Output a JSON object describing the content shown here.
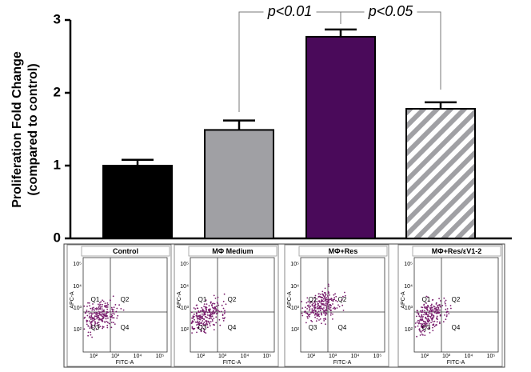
{
  "chart_data": {
    "type": "bar",
    "y_label_lines": [
      "Proliferation Fold Change",
      "(compared to control)"
    ],
    "categories": [
      "Control",
      "MΦ Medium",
      "MΦ+Res",
      "MΦ+Res/εV1-2"
    ],
    "values": [
      1.0,
      1.49,
      2.77,
      1.78
    ],
    "errors": [
      0.08,
      0.13,
      0.1,
      0.09
    ],
    "colors": [
      "#000000",
      "#a0a0a4",
      "#4a0a5a",
      "#a0a0a4"
    ],
    "hatched": [
      false,
      false,
      false,
      true
    ],
    "ylim": [
      0,
      3
    ],
    "yticks": [
      0,
      1,
      2,
      3
    ],
    "annotations": [
      "p<0.01",
      "p<0.05"
    ]
  },
  "flow_panels": {
    "x_label": "FITC-A",
    "y_label": "APC-A",
    "quadrants": [
      "Q1",
      "Q2",
      "Q3",
      "Q4"
    ],
    "ticks": [
      "10²",
      "10³",
      "10⁴",
      "10⁵"
    ]
  }
}
